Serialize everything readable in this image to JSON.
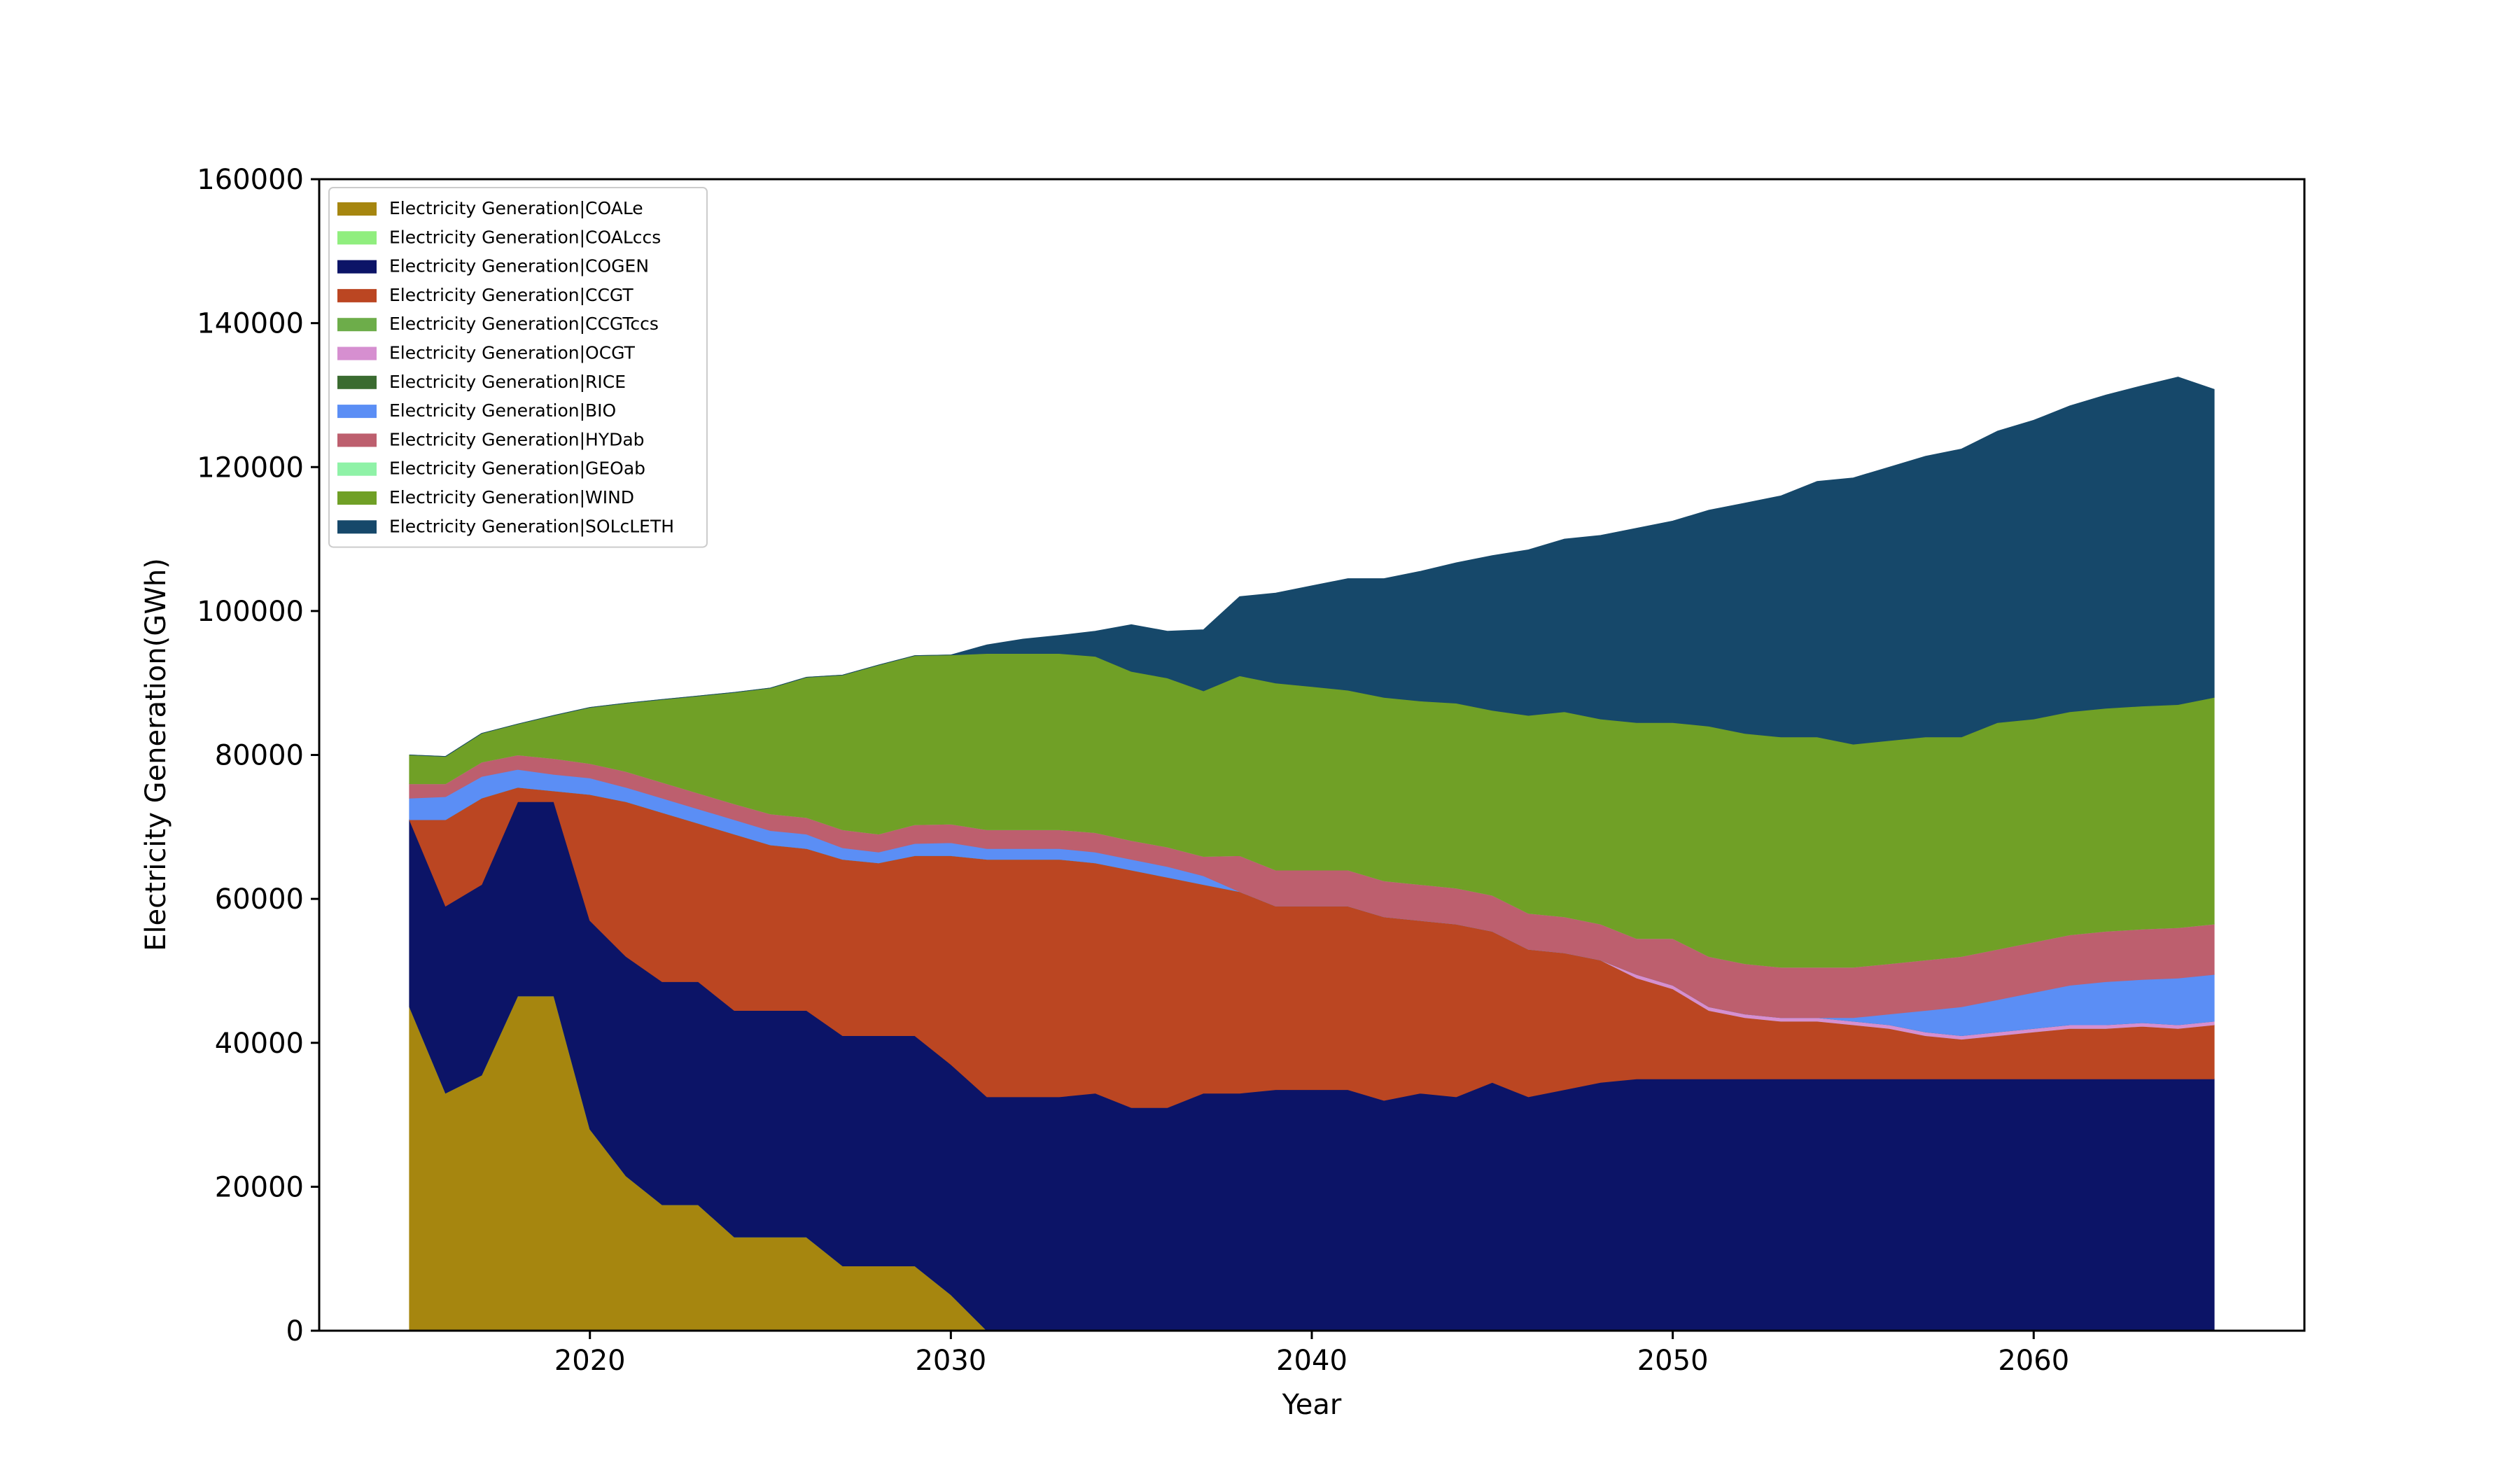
{
  "chart_data": {
    "type": "area",
    "stacked": true,
    "xlabel": "Year",
    "ylabel": "Electricity Generation(GWh)",
    "xlim": [
      2012.5,
      2067.5
    ],
    "ylim": [
      0,
      160000
    ],
    "xticks": [
      2020,
      2030,
      2040,
      2050,
      2060
    ],
    "yticks": [
      0,
      20000,
      40000,
      60000,
      80000,
      100000,
      120000,
      140000,
      160000
    ],
    "grid": false,
    "legend_position": "upper-left",
    "x": [
      2015,
      2016,
      2017,
      2018,
      2019,
      2020,
      2021,
      2022,
      2023,
      2024,
      2025,
      2026,
      2027,
      2028,
      2029,
      2030,
      2031,
      2032,
      2033,
      2034,
      2035,
      2036,
      2037,
      2038,
      2039,
      2040,
      2041,
      2042,
      2043,
      2044,
      2045,
      2046,
      2047,
      2048,
      2049,
      2050,
      2051,
      2052,
      2053,
      2054,
      2055,
      2056,
      2057,
      2058,
      2059,
      2060,
      2061,
      2062,
      2063,
      2064,
      2065
    ],
    "series": [
      {
        "name": "Electricity Generation|COALe",
        "color": "#a6860f",
        "values": [
          45000,
          33000,
          35500,
          46500,
          46500,
          28000,
          21500,
          17500,
          17500,
          13000,
          13000,
          13000,
          9000,
          9000,
          9000,
          5000,
          0,
          0,
          0,
          0,
          0,
          0,
          0,
          0,
          0,
          0,
          0,
          0,
          0,
          0,
          0,
          0,
          0,
          0,
          0,
          0,
          0,
          0,
          0,
          0,
          0,
          0,
          0,
          0,
          0,
          0,
          0,
          0,
          0,
          0,
          0
        ]
      },
      {
        "name": "Electricity Generation|COALccs",
        "color": "#90ee7e",
        "values": [
          0,
          0,
          0,
          0,
          0,
          0,
          0,
          0,
          0,
          0,
          0,
          0,
          0,
          0,
          0,
          0,
          0,
          0,
          0,
          0,
          0,
          0,
          0,
          0,
          0,
          0,
          0,
          0,
          0,
          0,
          0,
          0,
          0,
          0,
          0,
          0,
          0,
          0,
          0,
          0,
          0,
          0,
          0,
          0,
          0,
          0,
          0,
          0,
          0,
          0,
          0
        ]
      },
      {
        "name": "Electricity Generation|COGEN",
        "color": "#0c1467",
        "values": [
          26000,
          26000,
          26500,
          27000,
          27000,
          29000,
          30500,
          31000,
          31000,
          31500,
          31500,
          31500,
          32000,
          32000,
          32000,
          32000,
          32500,
          32500,
          32500,
          33000,
          31000,
          31000,
          33000,
          33000,
          33500,
          33500,
          33500,
          32000,
          33000,
          32500,
          34500,
          32500,
          33500,
          34500,
          35000,
          35000,
          35000,
          35000,
          35000,
          35000,
          35000,
          35000,
          35000,
          35000,
          35000,
          35000,
          35000,
          35000,
          35000,
          35000,
          35000
        ]
      },
      {
        "name": "Electricity Generation|CCGT",
        "color": "#bb4622",
        "values": [
          0,
          12000,
          12000,
          2000,
          1500,
          17500,
          21500,
          23500,
          22000,
          24500,
          23000,
          22500,
          24500,
          24000,
          25000,
          29000,
          33000,
          33000,
          33000,
          32000,
          33000,
          32000,
          29000,
          28000,
          25500,
          25500,
          25500,
          25500,
          24000,
          24000,
          21000,
          20500,
          19000,
          17000,
          14000,
          12500,
          9500,
          8500,
          8000,
          8000,
          7500,
          7000,
          6000,
          5500,
          6000,
          6500,
          7000,
          7000,
          7300,
          7000,
          7500
        ]
      },
      {
        "name": "Electricity Generation|CCGTccs",
        "color": "#6dad4a",
        "values": [
          0,
          0,
          0,
          0,
          0,
          0,
          0,
          0,
          0,
          0,
          0,
          0,
          0,
          0,
          0,
          0,
          0,
          0,
          0,
          0,
          0,
          0,
          0,
          0,
          0,
          0,
          0,
          0,
          0,
          0,
          0,
          0,
          0,
          0,
          0,
          0,
          0,
          0,
          0,
          0,
          0,
          0,
          0,
          0,
          0,
          0,
          0,
          0,
          0,
          0,
          0
        ]
      },
      {
        "name": "Electricity Generation|OCGT",
        "color": "#d68fd0",
        "values": [
          0,
          0,
          0,
          0,
          0,
          0,
          0,
          0,
          0,
          0,
          0,
          0,
          0,
          0,
          0,
          0,
          0,
          0,
          0,
          0,
          0,
          0,
          0,
          0,
          0,
          0,
          0,
          0,
          0,
          0,
          0,
          0,
          0,
          0,
          500,
          500,
          500,
          500,
          500,
          500,
          500,
          500,
          500,
          500,
          500,
          500,
          500,
          500,
          500,
          500,
          500
        ]
      },
      {
        "name": "Electricity Generation|RICE",
        "color": "#3a6b30",
        "values": [
          0,
          0,
          0,
          0,
          0,
          0,
          0,
          0,
          0,
          0,
          0,
          0,
          0,
          0,
          0,
          0,
          0,
          0,
          0,
          0,
          0,
          0,
          0,
          0,
          0,
          0,
          0,
          0,
          0,
          0,
          0,
          0,
          0,
          0,
          0,
          0,
          0,
          0,
          0,
          0,
          0,
          0,
          0,
          0,
          0,
          0,
          0,
          0,
          0,
          0,
          0
        ]
      },
      {
        "name": "Electricity Generation|BIO",
        "color": "#5b8ef5",
        "values": [
          3000,
          3200,
          3000,
          2500,
          2300,
          2300,
          2000,
          2000,
          2000,
          2000,
          2000,
          2000,
          1600,
          1500,
          1700,
          1800,
          1500,
          1500,
          1500,
          1500,
          1500,
          1500,
          1200,
          0,
          0,
          0,
          0,
          0,
          0,
          0,
          0,
          0,
          0,
          0,
          0,
          0,
          0,
          0,
          0,
          0,
          500,
          1500,
          3000,
          4000,
          4500,
          5000,
          5500,
          6000,
          6000,
          6500,
          6500
        ]
      },
      {
        "name": "Electricity Generation|HYDab",
        "color": "#bd5f6e",
        "values": [
          2000,
          1800,
          2000,
          2000,
          2200,
          2000,
          2200,
          2200,
          2200,
          2200,
          2300,
          2300,
          2500,
          2500,
          2600,
          2600,
          2600,
          2600,
          2600,
          2700,
          2600,
          2700,
          2700,
          5000,
          5000,
          5000,
          5000,
          5000,
          5000,
          5000,
          5000,
          5000,
          5000,
          5000,
          5000,
          6500,
          7000,
          7000,
          7000,
          7000,
          7000,
          7000,
          7000,
          7000,
          7000,
          7000,
          7000,
          7000,
          7000,
          7000,
          7000
        ]
      },
      {
        "name": "Electricity Generation|GEOab",
        "color": "#8ff2a7",
        "values": [
          0,
          0,
          0,
          0,
          0,
          0,
          0,
          0,
          0,
          0,
          0,
          0,
          0,
          0,
          0,
          0,
          0,
          0,
          0,
          0,
          0,
          0,
          0,
          0,
          0,
          0,
          0,
          0,
          0,
          0,
          0,
          0,
          0,
          0,
          0,
          0,
          0,
          0,
          0,
          0,
          0,
          0,
          0,
          0,
          0,
          0,
          0,
          0,
          0,
          0,
          0
        ]
      },
      {
        "name": "Electricity Generation|WIND",
        "color": "#70a026",
        "values": [
          4000,
          3800,
          4000,
          4300,
          6000,
          7800,
          9500,
          11500,
          13500,
          15500,
          17500,
          19500,
          21500,
          23500,
          23500,
          23500,
          24500,
          24500,
          24500,
          24500,
          23500,
          23500,
          23000,
          25000,
          26000,
          25500,
          25000,
          25500,
          25500,
          25700,
          25700,
          27500,
          28500,
          28500,
          30000,
          30000,
          32000,
          32000,
          32000,
          32000,
          31000,
          31000,
          31000,
          30500,
          31500,
          31000,
          31000,
          31000,
          31000,
          31000,
          31500
        ]
      },
      {
        "name": "Electricity Generation|SOLcLETH",
        "color": "#16486a",
        "values": [
          0,
          0,
          0,
          0,
          0,
          0,
          0,
          0,
          0,
          0,
          0,
          0,
          0,
          0,
          0,
          0,
          1200,
          2000,
          2500,
          3500,
          6500,
          6500,
          8500,
          11000,
          12500,
          14000,
          15500,
          16500,
          18000,
          19500,
          21500,
          23000,
          24000,
          25500,
          27000,
          28000,
          30000,
          32000,
          33500,
          35500,
          37000,
          38000,
          39000,
          40000,
          40500,
          41500,
          42500,
          43500,
          44500,
          45500,
          42800
        ]
      }
    ]
  }
}
